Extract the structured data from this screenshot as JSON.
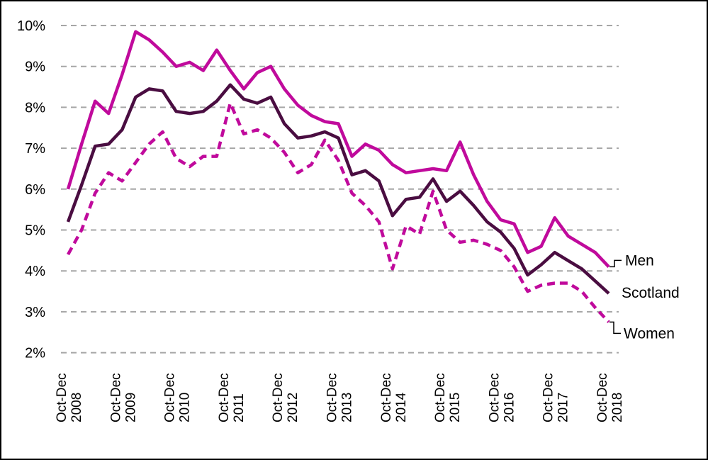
{
  "chart_data": {
    "type": "line",
    "title": "",
    "xlabel": "",
    "ylabel": "",
    "ylim": [
      2,
      10
    ],
    "y_ticks": [
      {
        "value": 10,
        "label": "10%"
      },
      {
        "value": 9,
        "label": "9%"
      },
      {
        "value": 8,
        "label": "8%"
      },
      {
        "value": 7,
        "label": "7%"
      },
      {
        "value": 6,
        "label": "6%"
      },
      {
        "value": 5,
        "label": "5%"
      },
      {
        "value": 4,
        "label": "4%"
      },
      {
        "value": 3,
        "label": "3%"
      },
      {
        "value": 2,
        "label": "2%"
      }
    ],
    "grid": "horizontal-dashed",
    "gridline_color": "#a6a6a6",
    "n_points": 41,
    "x_period": "quarterly",
    "x_ticks": [
      {
        "index": 0,
        "line1": "Oct-Dec",
        "line2": "2008"
      },
      {
        "index": 4,
        "line1": "Oct-Dec",
        "line2": "2009"
      },
      {
        "index": 8,
        "line1": "Oct-Dec",
        "line2": "2010"
      },
      {
        "index": 12,
        "line1": "Oct-Dec",
        "line2": "2011"
      },
      {
        "index": 16,
        "line1": "Oct-Dec",
        "line2": "2012"
      },
      {
        "index": 20,
        "line1": "Oct-Dec",
        "line2": "2013"
      },
      {
        "index": 24,
        "line1": "Oct-Dec",
        "line2": "2014"
      },
      {
        "index": 28,
        "line1": "Oct-Dec",
        "line2": "2015"
      },
      {
        "index": 32,
        "line1": "Oct-Dec",
        "line2": "2016"
      },
      {
        "index": 36,
        "line1": "Oct-Dec",
        "line2": "2017"
      },
      {
        "index": 40,
        "line1": "Oct-Dec",
        "line2": "2018"
      }
    ],
    "legend_position": "right-of-line-ends",
    "series": [
      {
        "name": "Men",
        "color": "#c00a9c",
        "style": "solid",
        "values": [
          6.0,
          7.1,
          8.15,
          7.85,
          8.8,
          9.85,
          9.65,
          9.35,
          9.0,
          9.1,
          8.9,
          9.4,
          8.9,
          8.45,
          8.85,
          9.0,
          8.45,
          8.05,
          7.8,
          7.65,
          7.6,
          6.8,
          7.1,
          6.95,
          6.6,
          6.4,
          6.45,
          6.5,
          6.45,
          7.15,
          6.35,
          5.7,
          5.25,
          5.15,
          4.45,
          4.6,
          5.3,
          4.85,
          4.65,
          4.45,
          4.1
        ]
      },
      {
        "name": "Scotland",
        "color": "#4a0d41",
        "style": "solid",
        "values": [
          5.2,
          6.1,
          7.05,
          7.1,
          7.45,
          8.25,
          8.45,
          8.4,
          7.9,
          7.85,
          7.9,
          8.15,
          8.55,
          8.2,
          8.1,
          8.25,
          7.6,
          7.25,
          7.3,
          7.4,
          7.25,
          6.35,
          6.45,
          6.2,
          5.35,
          5.75,
          5.8,
          6.25,
          5.7,
          5.95,
          5.6,
          5.2,
          4.95,
          4.55,
          3.9,
          4.15,
          4.45,
          4.25,
          4.05,
          3.75,
          3.45
        ]
      },
      {
        "name": "Women",
        "color": "#c00a9c",
        "style": "dashed",
        "values": [
          4.4,
          5.0,
          5.9,
          6.4,
          6.2,
          6.65,
          7.1,
          7.4,
          6.75,
          6.55,
          6.8,
          6.8,
          8.1,
          7.35,
          7.45,
          7.25,
          6.9,
          6.4,
          6.6,
          7.2,
          6.7,
          5.9,
          5.6,
          5.2,
          4.05,
          5.1,
          4.9,
          5.95,
          5.0,
          4.7,
          4.75,
          4.65,
          4.5,
          4.1,
          3.5,
          3.65,
          3.7,
          3.7,
          3.5,
          3.1,
          2.75
        ]
      }
    ],
    "end_labels": [
      {
        "text": "Men",
        "series": "Men"
      },
      {
        "text": "Scotland",
        "series": "Scotland"
      },
      {
        "text": "Women",
        "series": "Women"
      }
    ]
  },
  "colors": {
    "magenta": "#c00a9c",
    "dark_purple": "#4a0d41",
    "gridline": "#a6a6a6",
    "text": "#000000",
    "background": "#ffffff",
    "border": "#000000"
  }
}
